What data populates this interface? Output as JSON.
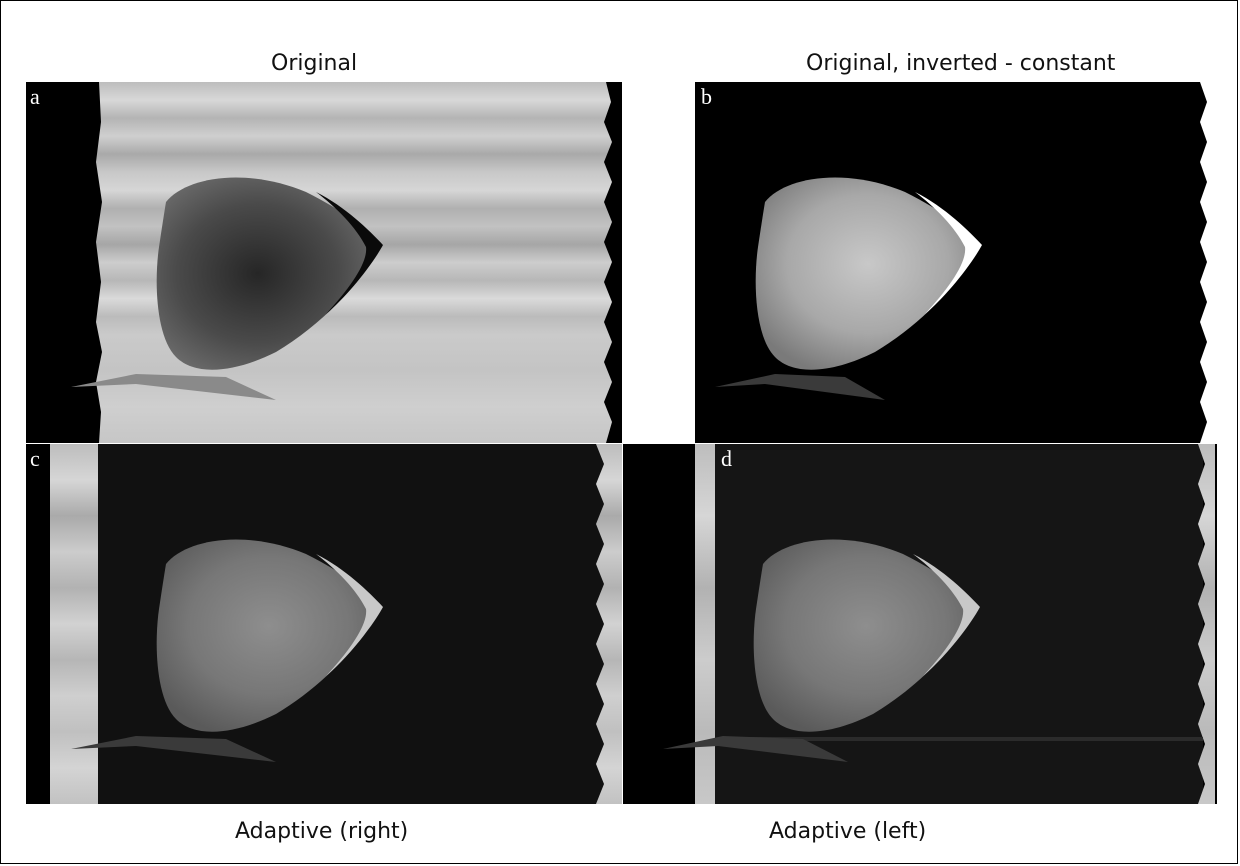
{
  "figure": {
    "titles": {
      "top_left": "Original",
      "top_right": "Original, inverted - constant",
      "bottom_left": "Adaptive (right)",
      "bottom_right": "Adaptive (left)"
    },
    "panel_labels": {
      "a": "a",
      "b": "b",
      "c": "c",
      "d": "d"
    }
  }
}
